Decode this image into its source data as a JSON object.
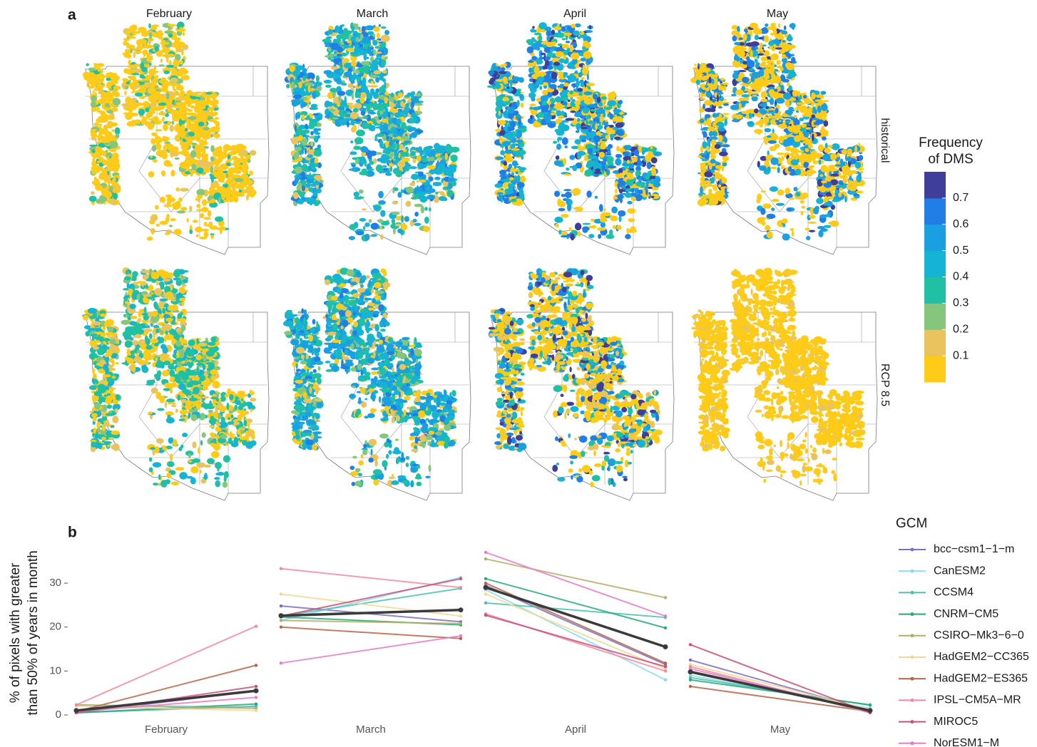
{
  "panel_a": {
    "label": "a",
    "months": [
      "February",
      "March",
      "April",
      "May"
    ],
    "rows": [
      "historical",
      "RCP 8.5"
    ],
    "colorbar": {
      "title_lines": [
        "Frequency",
        "of DMS"
      ],
      "colors": [
        "#fecb19",
        "#e8c35e",
        "#86c67c",
        "#1fc0a3",
        "#15b3d4",
        "#1a9fe0",
        "#1f7fe6",
        "#3f3f9a"
      ],
      "lim": [
        0,
        0.8
      ],
      "ticks": [
        0.1,
        0.2,
        0.3,
        0.4,
        0.5,
        0.6,
        0.7
      ]
    }
  },
  "chart_data": {
    "type": "line",
    "label": "b",
    "categories": [
      "February",
      "March",
      "April",
      "May"
    ],
    "ylabel": [
      "% of pixels with greater",
      "than 50% of years in month"
    ],
    "ylim": [
      -0.8,
      37.8
    ],
    "yticks": [
      0,
      10,
      20,
      30
    ],
    "legend_title": "GCM",
    "series": [
      {
        "name": "bcc−csm1−1−m",
        "color": "#7b6fc0",
        "values": [
          [
            0.5,
            5.5
          ],
          [
            24.8,
            21.2
          ],
          [
            29.5,
            11.5
          ],
          [
            12.5,
            1.0
          ]
        ]
      },
      {
        "name": "CanESM2",
        "color": "#8fd9ee",
        "values": [
          [
            2.3,
            1.8
          ],
          [
            21.5,
            31.3
          ],
          [
            28.5,
            8.0
          ],
          [
            9.0,
            1.5
          ]
        ]
      },
      {
        "name": "CCSM4",
        "color": "#4cc0b0",
        "values": [
          [
            0.5,
            2.0
          ],
          [
            22.5,
            28.8
          ],
          [
            25.5,
            22.2
          ],
          [
            8.5,
            2.2
          ]
        ]
      },
      {
        "name": "CNRM−CM5",
        "color": "#27a878",
        "values": [
          [
            0.5,
            2.5
          ],
          [
            22.3,
            20.5
          ],
          [
            31.0,
            19.8
          ],
          [
            8.0,
            2.3
          ]
        ]
      },
      {
        "name": "CSIRO−Mk3−6−0",
        "color": "#b5ad6a",
        "values": [
          [
            2.3,
            1.5
          ],
          [
            21.5,
            20.8
          ],
          [
            35.5,
            26.7
          ],
          [
            10.0,
            1.0
          ]
        ]
      },
      {
        "name": "HadGEM2−CC365",
        "color": "#f0d898",
        "values": [
          [
            2.0,
            1.0
          ],
          [
            27.5,
            22.5
          ],
          [
            27.5,
            10.5
          ],
          [
            11.5,
            1.2
          ]
        ]
      },
      {
        "name": "HadGEM2−ES365",
        "color": "#b5654a",
        "values": [
          [
            0.8,
            11.3
          ],
          [
            20.0,
            17.4
          ],
          [
            30.0,
            11.8
          ],
          [
            6.5,
            0.8
          ]
        ]
      },
      {
        "name": "IPSL−CM5A−MR",
        "color": "#f08ba0",
        "values": [
          [
            2.3,
            20.2
          ],
          [
            33.3,
            29.0
          ],
          [
            23.0,
            10.0
          ],
          [
            11.0,
            0.5
          ]
        ]
      },
      {
        "name": "MIROC5",
        "color": "#c8507a",
        "values": [
          [
            0.5,
            6.5
          ],
          [
            22.5,
            31.0
          ],
          [
            22.7,
            11.0
          ],
          [
            16.0,
            0.5
          ]
        ]
      },
      {
        "name": "NorESM1−M",
        "color": "#e07ec8",
        "values": [
          [
            0.8,
            4.0
          ],
          [
            11.8,
            18.0
          ],
          [
            37.0,
            22.5
          ],
          [
            10.5,
            1.0
          ]
        ]
      },
      {
        "color": "#3a3a3a",
        "values": [
          [
            1.0,
            5.5
          ],
          [
            22.6,
            23.9
          ],
          [
            29.0,
            15.5
          ],
          [
            9.8,
            1.0
          ]
        ]
      }
    ]
  }
}
